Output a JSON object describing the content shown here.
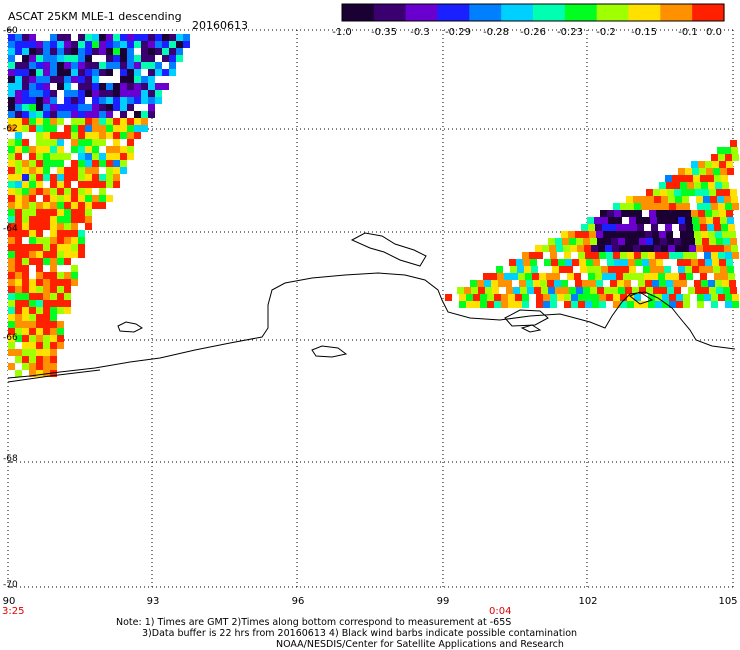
{
  "header": {
    "title": "ASCAT 25KM MLE-1 descending",
    "date": "20160613"
  },
  "colorbar": {
    "labels": [
      "-1.0",
      "-0.35",
      "-0.3",
      "-0.29",
      "-0.28",
      "-0.26",
      "-0.23",
      "-0.2",
      "-0.15",
      "-0.1",
      "0.0"
    ],
    "colors": [
      "#1a0033",
      "#3a0070",
      "#6a00d0",
      "#1a20ff",
      "#0080ff",
      "#00d0ff",
      "#00ffb0",
      "#00ff20",
      "#a0ff00",
      "#ffe000",
      "#ff9000",
      "#ff2000"
    ]
  },
  "axes": {
    "lat_labels": [
      "-60",
      "-62",
      "-64",
      "-66",
      "-68",
      "-70"
    ],
    "lon_labels": [
      "90",
      "93",
      "96",
      "99",
      "102",
      "105"
    ],
    "lat_range": [
      -70,
      -60
    ],
    "lon_range": [
      90,
      105
    ]
  },
  "times": {
    "left": "3:25",
    "middle": "0:04"
  },
  "notes": {
    "line1": "Note: 1) Times are GMT 2)Times along bottom correspond to measurement at -65S",
    "line2": "3)Data buffer is 22 hrs from 20160613 4) Black wind barbs indicate possible contamination",
    "line3": "NOAA/NESDIS/Center for Satellite Applications and Research"
  }
}
